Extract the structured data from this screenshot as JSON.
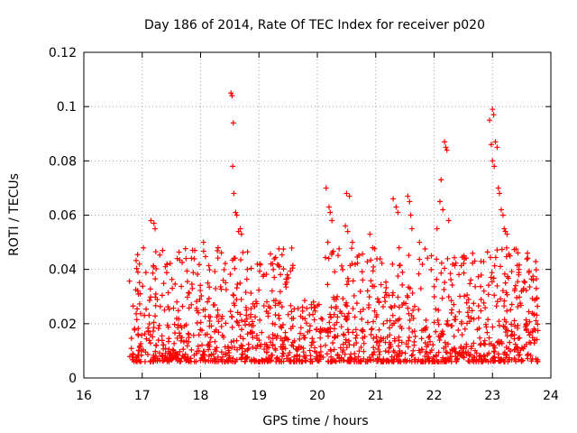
{
  "chart_data": {
    "type": "scatter",
    "title": "Day 186 of 2014, Rate Of TEC Index for receiver p020",
    "xlabel": "GPS time / hours",
    "ylabel": "ROTI / TECUs",
    "xlim": [
      16,
      24
    ],
    "ylim": [
      0,
      0.12
    ],
    "xticks": [
      16,
      17,
      18,
      19,
      20,
      21,
      22,
      23,
      24
    ],
    "xtick_labels": [
      "16",
      "17",
      "18",
      "19",
      "20",
      "21",
      "22",
      "23",
      "24"
    ],
    "yticks": [
      0,
      0.02,
      0.04,
      0.06,
      0.08,
      0.1,
      0.12
    ],
    "ytick_labels": [
      "0",
      "0.02",
      "0.04",
      "0.06",
      "0.08",
      "0.1",
      "0.12"
    ],
    "grid": true,
    "marker": "+",
    "color": "#ff0000",
    "series": [
      {
        "name": "ROTI",
        "density_profile": {
          "x_range": [
            16.78,
            23.78
          ],
          "baseline_min": 0.005,
          "baseline_max": 0.05
        },
        "points": [
          [
            17.15,
            0.058
          ],
          [
            17.2,
            0.057
          ],
          [
            17.22,
            0.055
          ],
          [
            17.35,
            0.047
          ],
          [
            17.6,
            0.044
          ],
          [
            17.9,
            0.047
          ],
          [
            18.05,
            0.05
          ],
          [
            18.3,
            0.048
          ],
          [
            18.52,
            0.105
          ],
          [
            18.54,
            0.104
          ],
          [
            18.56,
            0.094
          ],
          [
            18.55,
            0.078
          ],
          [
            18.57,
            0.068
          ],
          [
            18.6,
            0.061
          ],
          [
            18.62,
            0.06
          ],
          [
            18.65,
            0.054
          ],
          [
            18.68,
            0.055
          ],
          [
            18.7,
            0.053
          ],
          [
            18.8,
            0.04
          ],
          [
            19.35,
            0.041
          ],
          [
            20.15,
            0.07
          ],
          [
            20.2,
            0.063
          ],
          [
            20.22,
            0.061
          ],
          [
            20.25,
            0.058
          ],
          [
            20.18,
            0.05
          ],
          [
            20.5,
            0.068
          ],
          [
            20.55,
            0.067
          ],
          [
            20.48,
            0.056
          ],
          [
            20.52,
            0.054
          ],
          [
            20.6,
            0.05
          ],
          [
            20.9,
            0.053
          ],
          [
            20.95,
            0.048
          ],
          [
            21.3,
            0.066
          ],
          [
            21.35,
            0.063
          ],
          [
            21.38,
            0.061
          ],
          [
            21.55,
            0.067
          ],
          [
            21.58,
            0.065
          ],
          [
            21.6,
            0.06
          ],
          [
            21.62,
            0.055
          ],
          [
            21.4,
            0.048
          ],
          [
            21.75,
            0.05
          ],
          [
            22.1,
            0.065
          ],
          [
            22.15,
            0.062
          ],
          [
            22.12,
            0.073
          ],
          [
            22.18,
            0.087
          ],
          [
            22.2,
            0.085
          ],
          [
            22.22,
            0.084
          ],
          [
            22.25,
            0.058
          ],
          [
            22.05,
            0.055
          ],
          [
            22.95,
            0.095
          ],
          [
            22.98,
            0.086
          ],
          [
            23.0,
            0.099
          ],
          [
            23.02,
            0.097
          ],
          [
            23.05,
            0.087
          ],
          [
            23.08,
            0.085
          ],
          [
            23.0,
            0.08
          ],
          [
            23.03,
            0.078
          ],
          [
            23.1,
            0.07
          ],
          [
            23.12,
            0.068
          ],
          [
            23.15,
            0.062
          ],
          [
            23.18,
            0.06
          ],
          [
            23.2,
            0.055
          ],
          [
            23.22,
            0.054
          ],
          [
            23.25,
            0.053
          ],
          [
            23.3,
            0.045
          ],
          [
            23.45,
            0.038
          ],
          [
            23.6,
            0.046
          ],
          [
            23.7,
            0.036
          ],
          [
            23.75,
            0.033
          ]
        ]
      }
    ]
  }
}
